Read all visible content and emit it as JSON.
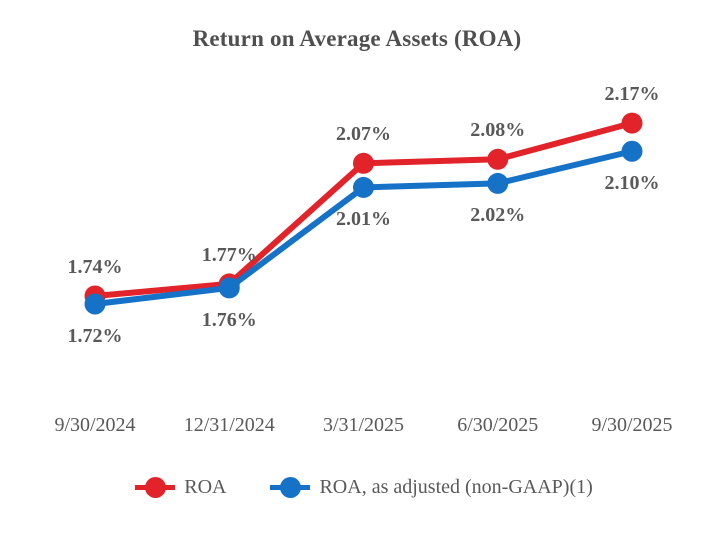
{
  "title": "Return on Average Assets (ROA)",
  "colors": {
    "roa_red": "#e2232a",
    "roa_adjusted_blue": "#1572c6",
    "title_text": "#4f4f4f",
    "label_text": "#595959",
    "background": "#ffffff"
  },
  "chart_data": {
    "type": "line",
    "title": "Return on Average Assets (ROA)",
    "categories": [
      "9/30/2024",
      "12/31/2024",
      "3/31/2025",
      "6/30/2025",
      "9/30/2025"
    ],
    "series": [
      {
        "name": "ROA",
        "color": "#e2232a",
        "values": [
          1.74,
          1.77,
          2.07,
          2.08,
          2.17
        ],
        "labels": [
          "1.74%",
          "1.77%",
          "2.07%",
          "2.08%",
          "2.17%"
        ],
        "label_position": "above"
      },
      {
        "name": "ROA, as adjusted (non-GAAP)(1)",
        "color": "#1572c6",
        "values": [
          1.72,
          1.76,
          2.01,
          2.02,
          2.1
        ],
        "labels": [
          "1.72%",
          "1.76%",
          "2.01%",
          "2.02%",
          "2.10%"
        ],
        "label_position": "below"
      }
    ],
    "xlabel": "",
    "ylabel": "",
    "ylim": [
      1.6,
      2.3
    ],
    "grid": false,
    "axes_visible": false,
    "legend_position": "bottom",
    "marker": "circle",
    "data_labels_visible": true
  }
}
